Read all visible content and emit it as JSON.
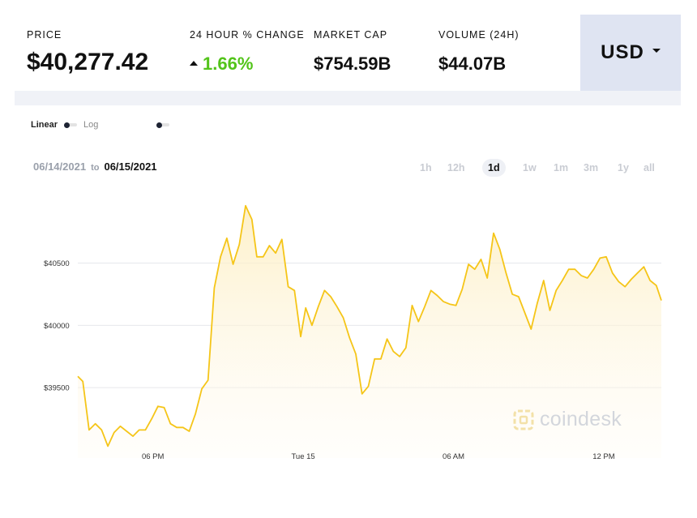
{
  "stats": [
    {
      "label": "PRICE",
      "value": "$40,277.42"
    },
    {
      "label": "24 HOUR % CHANGE",
      "value": "1.66%",
      "direction": "up"
    },
    {
      "label": "MARKET CAP",
      "value": "$754.59B"
    },
    {
      "label": "VOLUME (24H)",
      "value": "$44.07B"
    }
  ],
  "currency": {
    "label": "USD"
  },
  "scale": {
    "options": [
      "Linear",
      "Log"
    ],
    "selected": "Linear"
  },
  "date_range": {
    "from": "06/14/2021",
    "to_word": "to",
    "to": "06/15/2021"
  },
  "ranges": [
    "1h",
    "12h",
    "1d",
    "1w",
    "1m",
    "3m",
    "1y",
    "all"
  ],
  "active_range": "1d",
  "brand": {
    "text": "coindesk",
    "icon": "coindesk-logo-icon"
  },
  "colors": {
    "line": "#f5c518",
    "fill": "#fdf0c8",
    "positive": "#53c41a",
    "accent_bg": "#dfe4f2"
  },
  "chart_data": {
    "type": "area",
    "title": "",
    "xlabel": "",
    "ylabel": "",
    "y_tick_labels": [
      "$39500",
      "$40000",
      "$40500"
    ],
    "y_ticks": [
      39500,
      40000,
      40500
    ],
    "ylim": [
      39000,
      41050
    ],
    "x_tick_labels": [
      "06 PM",
      "Tue 15",
      "06 AM",
      "12 PM"
    ],
    "x_tick_hours": [
      18,
      24,
      30,
      36
    ],
    "xlim": [
      15.0,
      38.3
    ],
    "grid": "horizontal",
    "series": [
      {
        "x": [
          15.0,
          15.2,
          15.45,
          15.7,
          15.95,
          16.2,
          16.45,
          16.7,
          16.95,
          17.2,
          17.45,
          17.7,
          17.95,
          18.2,
          18.45,
          18.7,
          18.95,
          19.2,
          19.45,
          19.7,
          19.95,
          20.2,
          20.45,
          20.7,
          20.95,
          21.2,
          21.45,
          21.7,
          21.95,
          22.15,
          22.4,
          22.65,
          22.9,
          23.15,
          23.4,
          23.65,
          23.9,
          24.1,
          24.35,
          24.6,
          24.85,
          25.1,
          25.35,
          25.6,
          25.85,
          26.1,
          26.35,
          26.6,
          26.85,
          27.1,
          27.35,
          27.6,
          27.85,
          28.1,
          28.35,
          28.6,
          28.85,
          29.1,
          29.35,
          29.6,
          29.85,
          30.1,
          30.35,
          30.6,
          30.85,
          31.1,
          31.35,
          31.6,
          31.85,
          32.1,
          32.35,
          32.6,
          32.85,
          33.1,
          33.35,
          33.6,
          33.85,
          34.1,
          34.35,
          34.6,
          34.85,
          35.1,
          35.35,
          35.6,
          35.85,
          36.1,
          36.35,
          36.6,
          36.85,
          37.1,
          37.35,
          37.6,
          37.85,
          38.1,
          38.3
        ],
        "values": [
          39590,
          39550,
          39160,
          39210,
          39160,
          39030,
          39140,
          39190,
          39150,
          39110,
          39160,
          39160,
          39250,
          39350,
          39340,
          39210,
          39180,
          39180,
          39150,
          39290,
          39490,
          39560,
          40300,
          40550,
          40700,
          40490,
          40650,
          40960,
          40850,
          40550,
          40550,
          40640,
          40580,
          40690,
          40310,
          40280,
          39910,
          40140,
          40000,
          40150,
          40280,
          40230,
          40150,
          40060,
          39900,
          39770,
          39450,
          39510,
          39730,
          39730,
          39890,
          39790,
          39750,
          39820,
          40160,
          40030,
          40150,
          40280,
          40240,
          40190,
          40170,
          40160,
          40290,
          40490,
          40450,
          40530,
          40380,
          40740,
          40610,
          40420,
          40250,
          40230,
          40100,
          39970,
          40180,
          40360,
          40120,
          40280,
          40360,
          40450,
          40450,
          40400,
          40380,
          40450,
          40540,
          40550,
          40420,
          40350,
          40310,
          40370,
          40420,
          40470,
          40360,
          40320,
          40200
        ]
      }
    ]
  }
}
